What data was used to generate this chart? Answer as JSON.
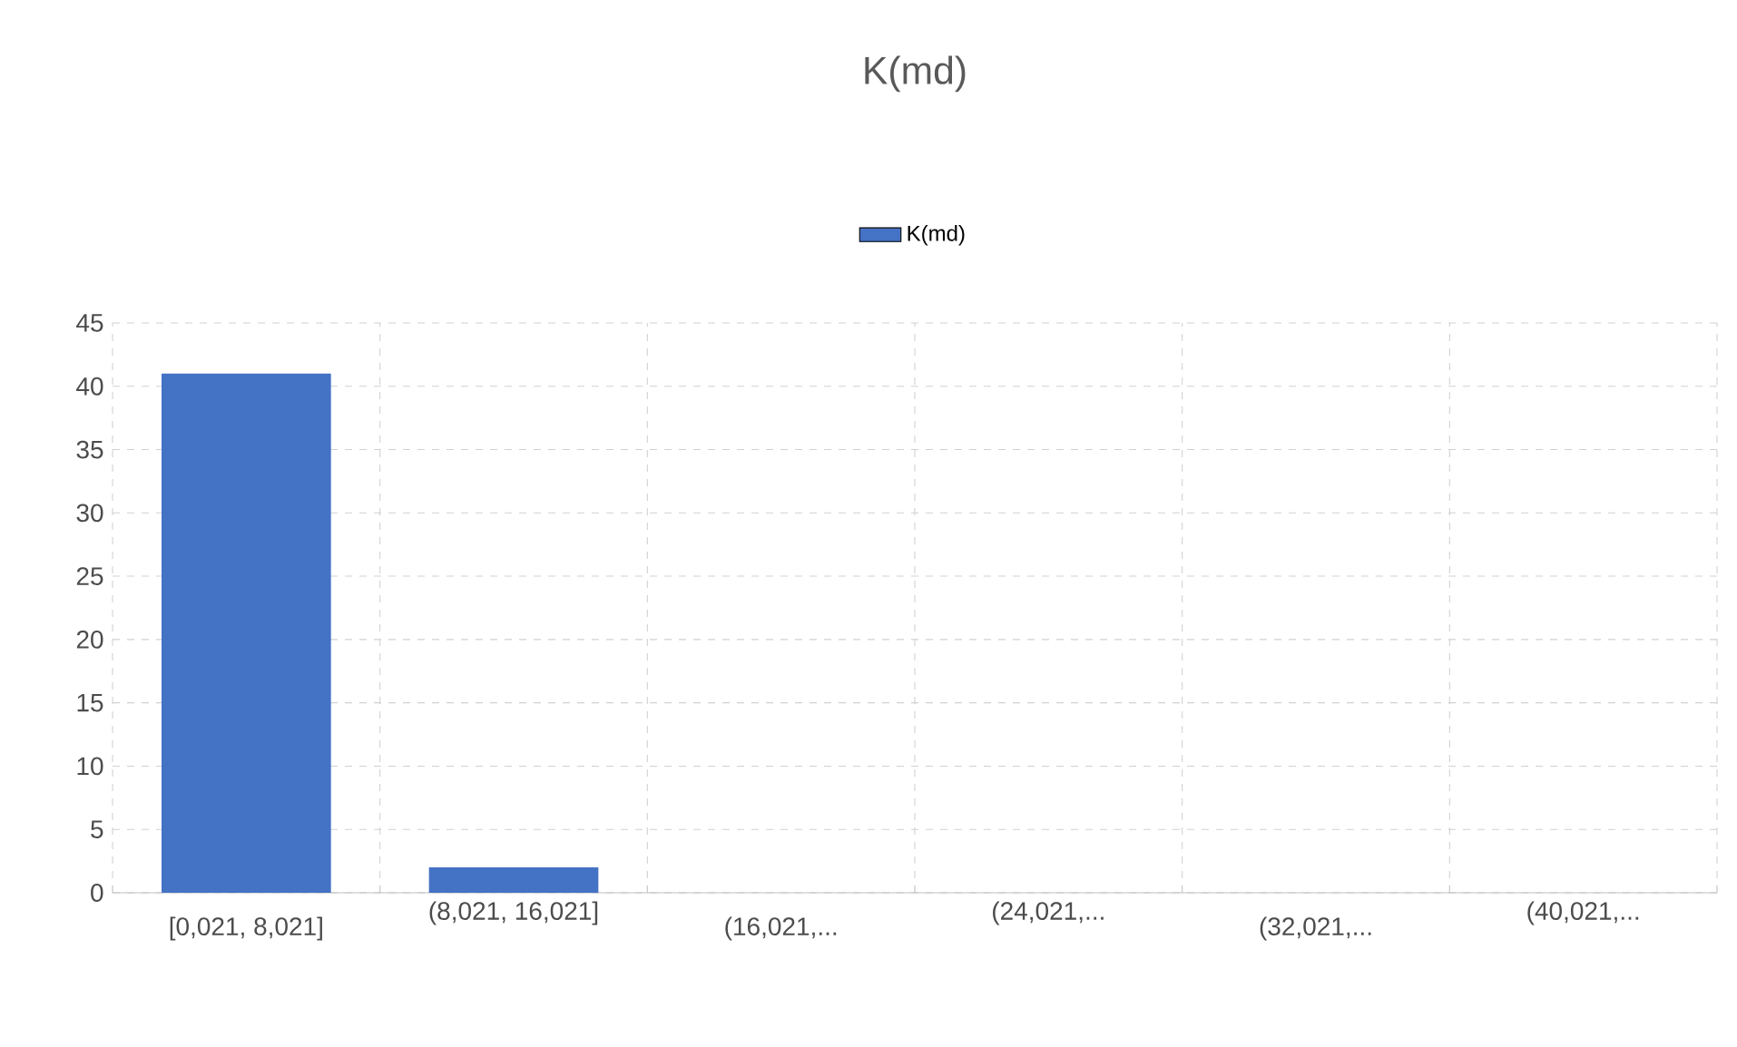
{
  "chart_data": {
    "type": "bar",
    "title": "K(md)",
    "categories": [
      "[0,021, 8,021]",
      "(8,021, 16,021]",
      "(16,021,...",
      "(24,021,...",
      "(32,021,...",
      "(40,021,..."
    ],
    "series": [
      {
        "name": "K(md)",
        "color": "#4472c4",
        "values": [
          41,
          2,
          0,
          0,
          0,
          0
        ]
      }
    ],
    "ylim": [
      0,
      45
    ],
    "yticks": [
      0,
      5,
      10,
      15,
      20,
      25,
      30,
      35,
      40,
      45
    ],
    "grid": true,
    "legend": "top"
  }
}
